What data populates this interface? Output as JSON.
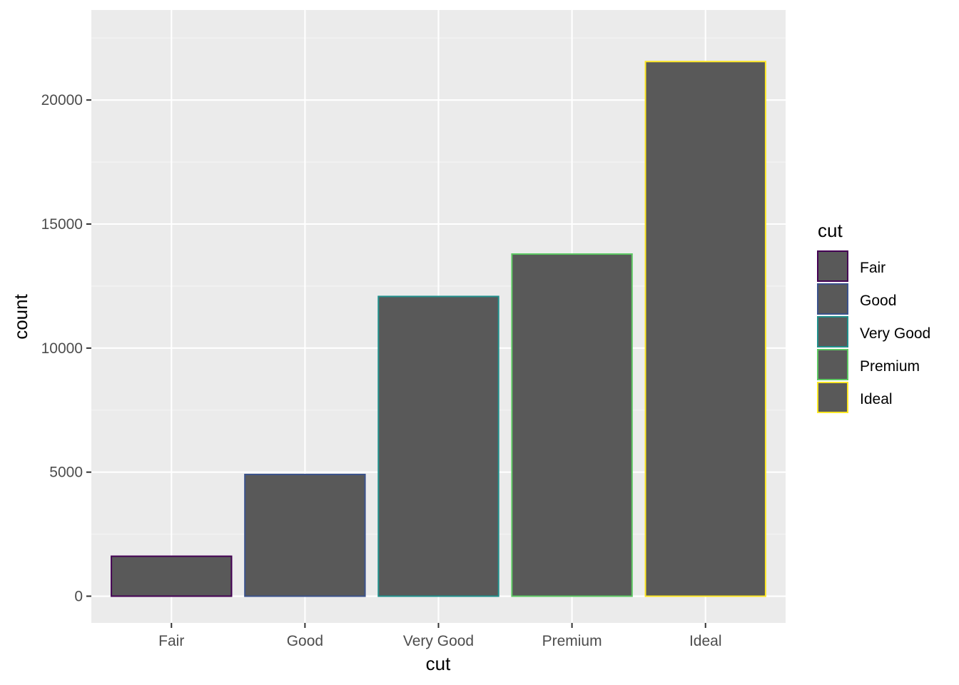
{
  "chart_data": {
    "type": "bar",
    "categories": [
      "Fair",
      "Good",
      "Very Good",
      "Premium",
      "Ideal"
    ],
    "values": [
      1610,
      4906,
      12082,
      13791,
      21551
    ],
    "xlabel": "cut",
    "ylabel": "count",
    "ylim": [
      -1078,
      23629
    ],
    "yticks": [
      0,
      5000,
      10000,
      15000,
      20000
    ],
    "ytick_labels": [
      "0",
      "5000",
      "10000",
      "15000",
      "20000"
    ],
    "grid": true,
    "legend": {
      "title": "cut",
      "placement": "right",
      "entries": [
        "Fair",
        "Good",
        "Very Good",
        "Premium",
        "Ideal"
      ]
    },
    "colors": {
      "bar_fill": "#595959",
      "panel_background": "#ebebeb",
      "grid_major": "#ffffff",
      "grid_minor": "#f5f5f5",
      "outlines": [
        "#440154",
        "#3b528b",
        "#21908c",
        "#5dc863",
        "#fde725"
      ]
    }
  }
}
